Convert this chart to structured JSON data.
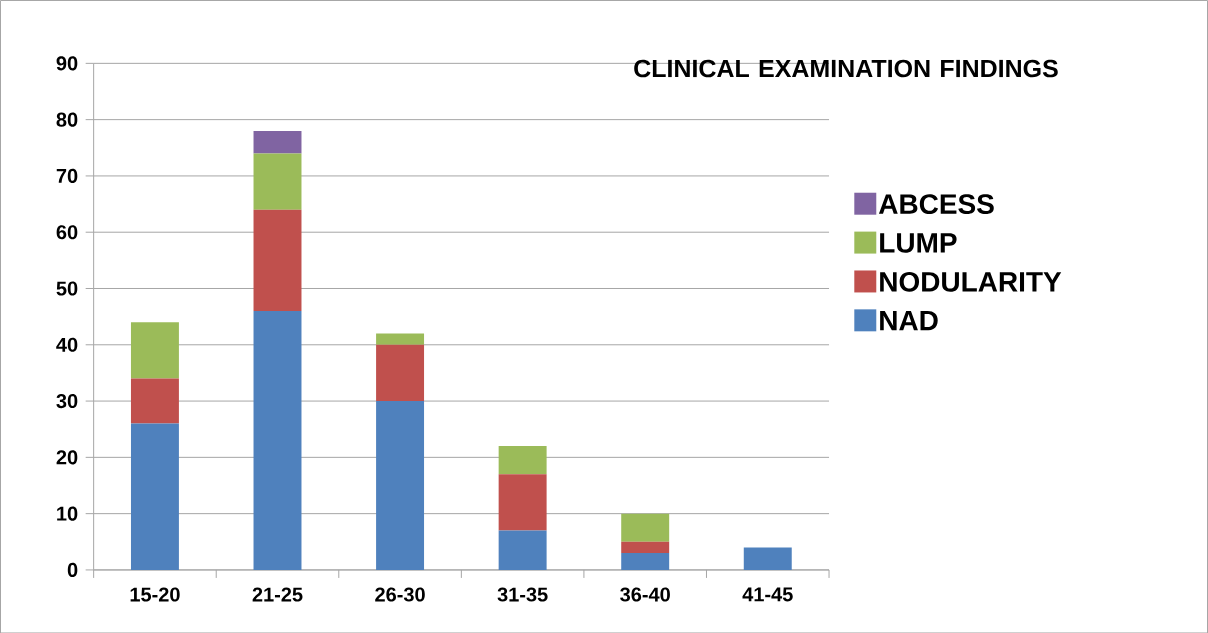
{
  "chart_data": {
    "type": "bar",
    "stacked": true,
    "title": "CLINICAL EXAMINATION FINDINGS",
    "categories": [
      "15-20",
      "21-25",
      "26-30",
      "31-35",
      "36-40",
      "41-45"
    ],
    "series": [
      {
        "name": "NAD",
        "color": "#4f81bd",
        "values": [
          26,
          46,
          30,
          7,
          3,
          4
        ]
      },
      {
        "name": "NODULARITY",
        "color": "#c0504d",
        "values": [
          8,
          18,
          10,
          10,
          2,
          0
        ]
      },
      {
        "name": "LUMP",
        "color": "#9bbb59",
        "values": [
          10,
          10,
          2,
          5,
          5,
          0
        ]
      },
      {
        "name": "ABCESS",
        "color": "#8064a2",
        "values": [
          0,
          4,
          0,
          0,
          0,
          0
        ]
      }
    ],
    "ylim": [
      0,
      90
    ],
    "yticks": [
      0,
      10,
      20,
      30,
      40,
      50,
      60,
      70,
      80,
      90
    ],
    "grid": "y",
    "legend": "right"
  }
}
